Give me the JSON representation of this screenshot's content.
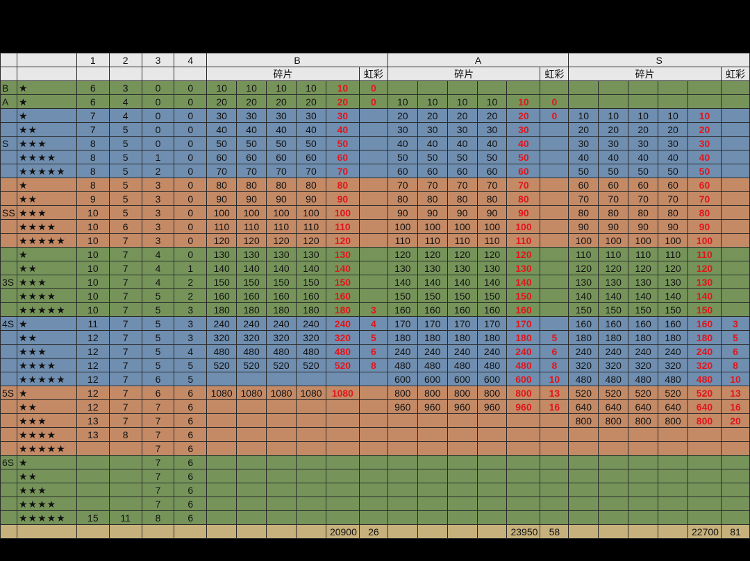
{
  "header": {
    "top": [
      "",
      "",
      "1",
      "2",
      "3",
      "4",
      "B",
      "A",
      "S"
    ],
    "shard": "碎片",
    "rainbow": "虹彩"
  },
  "rows": [
    {
      "band": "green",
      "grade": "B",
      "stars": "★",
      "c": [
        "6",
        "3",
        "0",
        "0"
      ],
      "B": [
        "10",
        "10",
        "10",
        "10",
        "10"
      ],
      "Br": "0",
      "A": [
        "",
        "",
        "",
        "",
        ""
      ],
      "Ar": "",
      "S": [
        "",
        "",
        "",
        "",
        ""
      ],
      "Sr": ""
    },
    {
      "band": "green",
      "grade": "A",
      "stars": "★",
      "c": [
        "6",
        "4",
        "0",
        "0"
      ],
      "B": [
        "20",
        "20",
        "20",
        "20",
        "20"
      ],
      "Br": "0",
      "A": [
        "10",
        "10",
        "10",
        "10",
        "10"
      ],
      "Ar": "0",
      "S": [
        "",
        "",
        "",
        "",
        ""
      ],
      "Sr": ""
    },
    {
      "band": "blue",
      "grade": "",
      "stars": "★",
      "c": [
        "7",
        "4",
        "0",
        "0"
      ],
      "B": [
        "30",
        "30",
        "30",
        "30",
        "30"
      ],
      "Br": "",
      "A": [
        "20",
        "20",
        "20",
        "20",
        "20"
      ],
      "Ar": "0",
      "S": [
        "10",
        "10",
        "10",
        "10",
        "10"
      ],
      "Sr": ""
    },
    {
      "band": "blue",
      "grade": "",
      "stars": "★★",
      "c": [
        "7",
        "5",
        "0",
        "0"
      ],
      "B": [
        "40",
        "40",
        "40",
        "40",
        "40"
      ],
      "Br": "",
      "A": [
        "30",
        "30",
        "30",
        "30",
        "30"
      ],
      "Ar": "",
      "S": [
        "20",
        "20",
        "20",
        "20",
        "20"
      ],
      "Sr": ""
    },
    {
      "band": "blue",
      "grade": "S",
      "stars": "★★★",
      "c": [
        "8",
        "5",
        "0",
        "0"
      ],
      "B": [
        "50",
        "50",
        "50",
        "50",
        "50"
      ],
      "Br": "",
      "A": [
        "40",
        "40",
        "40",
        "40",
        "40"
      ],
      "Ar": "",
      "S": [
        "30",
        "30",
        "30",
        "30",
        "30"
      ],
      "Sr": ""
    },
    {
      "band": "blue",
      "grade": "",
      "stars": "★★★★",
      "c": [
        "8",
        "5",
        "1",
        "0"
      ],
      "B": [
        "60",
        "60",
        "60",
        "60",
        "60"
      ],
      "Br": "",
      "A": [
        "50",
        "50",
        "50",
        "50",
        "50"
      ],
      "Ar": "",
      "S": [
        "40",
        "40",
        "40",
        "40",
        "40"
      ],
      "Sr": ""
    },
    {
      "band": "blue",
      "grade": "",
      "stars": "★★★★★",
      "c": [
        "8",
        "5",
        "2",
        "0"
      ],
      "B": [
        "70",
        "70",
        "70",
        "70",
        "70"
      ],
      "Br": "",
      "A": [
        "60",
        "60",
        "60",
        "60",
        "60"
      ],
      "Ar": "",
      "S": [
        "50",
        "50",
        "50",
        "50",
        "50"
      ],
      "Sr": ""
    },
    {
      "band": "orange",
      "grade": "",
      "stars": "★",
      "c": [
        "8",
        "5",
        "3",
        "0"
      ],
      "B": [
        "80",
        "80",
        "80",
        "80",
        "80"
      ],
      "Br": "",
      "A": [
        "70",
        "70",
        "70",
        "70",
        "70"
      ],
      "Ar": "",
      "S": [
        "60",
        "60",
        "60",
        "60",
        "60"
      ],
      "Sr": ""
    },
    {
      "band": "orange",
      "grade": "",
      "stars": "★★",
      "c": [
        "9",
        "5",
        "3",
        "0"
      ],
      "B": [
        "90",
        "90",
        "90",
        "90",
        "90"
      ],
      "Br": "",
      "A": [
        "80",
        "80",
        "80",
        "80",
        "80"
      ],
      "Ar": "",
      "S": [
        "70",
        "70",
        "70",
        "70",
        "70"
      ],
      "Sr": ""
    },
    {
      "band": "orange",
      "grade": "SS",
      "stars": "★★★",
      "c": [
        "10",
        "5",
        "3",
        "0"
      ],
      "B": [
        "100",
        "100",
        "100",
        "100",
        "100"
      ],
      "Br": "",
      "A": [
        "90",
        "90",
        "90",
        "90",
        "90"
      ],
      "Ar": "",
      "S": [
        "80",
        "80",
        "80",
        "80",
        "80"
      ],
      "Sr": ""
    },
    {
      "band": "orange",
      "grade": "",
      "stars": "★★★★",
      "c": [
        "10",
        "6",
        "3",
        "0"
      ],
      "B": [
        "110",
        "110",
        "110",
        "110",
        "110"
      ],
      "Br": "",
      "A": [
        "100",
        "100",
        "100",
        "100",
        "100"
      ],
      "Ar": "",
      "S": [
        "90",
        "90",
        "90",
        "90",
        "90"
      ],
      "Sr": ""
    },
    {
      "band": "orange",
      "grade": "",
      "stars": "★★★★★",
      "c": [
        "10",
        "7",
        "3",
        "0"
      ],
      "B": [
        "120",
        "120",
        "120",
        "120",
        "120"
      ],
      "Br": "",
      "A": [
        "110",
        "110",
        "110",
        "110",
        "110"
      ],
      "Ar": "",
      "S": [
        "100",
        "100",
        "100",
        "100",
        "100"
      ],
      "Sr": ""
    },
    {
      "band": "green",
      "grade": "",
      "stars": "★",
      "c": [
        "10",
        "7",
        "4",
        "0"
      ],
      "B": [
        "130",
        "130",
        "130",
        "130",
        "130"
      ],
      "Br": "",
      "A": [
        "120",
        "120",
        "120",
        "120",
        "120"
      ],
      "Ar": "",
      "S": [
        "110",
        "110",
        "110",
        "110",
        "110"
      ],
      "Sr": ""
    },
    {
      "band": "green",
      "grade": "",
      "stars": "★★",
      "c": [
        "10",
        "7",
        "4",
        "1"
      ],
      "B": [
        "140",
        "140",
        "140",
        "140",
        "140"
      ],
      "Br": "",
      "A": [
        "130",
        "130",
        "130",
        "130",
        "130"
      ],
      "Ar": "",
      "S": [
        "120",
        "120",
        "120",
        "120",
        "120"
      ],
      "Sr": ""
    },
    {
      "band": "green",
      "grade": "3S",
      "stars": "★★★",
      "c": [
        "10",
        "7",
        "4",
        "2"
      ],
      "B": [
        "150",
        "150",
        "150",
        "150",
        "150"
      ],
      "Br": "",
      "A": [
        "140",
        "140",
        "140",
        "140",
        "140"
      ],
      "Ar": "",
      "S": [
        "130",
        "130",
        "130",
        "130",
        "130"
      ],
      "Sr": ""
    },
    {
      "band": "green",
      "grade": "",
      "stars": "★★★★",
      "c": [
        "10",
        "7",
        "5",
        "2"
      ],
      "B": [
        "160",
        "160",
        "160",
        "160",
        "160"
      ],
      "Br": "",
      "A": [
        "150",
        "150",
        "150",
        "150",
        "150"
      ],
      "Ar": "",
      "S": [
        "140",
        "140",
        "140",
        "140",
        "140"
      ],
      "Sr": ""
    },
    {
      "band": "green",
      "grade": "",
      "stars": "★★★★★",
      "c": [
        "10",
        "7",
        "5",
        "3"
      ],
      "B": [
        "180",
        "180",
        "180",
        "180",
        "180"
      ],
      "Br": "3",
      "A": [
        "160",
        "160",
        "160",
        "160",
        "160"
      ],
      "Ar": "",
      "S": [
        "150",
        "150",
        "150",
        "150",
        "150"
      ],
      "Sr": ""
    },
    {
      "band": "blue",
      "grade": "4S",
      "stars": "★",
      "c": [
        "11",
        "7",
        "5",
        "3"
      ],
      "B": [
        "240",
        "240",
        "240",
        "240",
        "240"
      ],
      "Br": "4",
      "A": [
        "170",
        "170",
        "170",
        "170",
        "170"
      ],
      "Ar": "",
      "S": [
        "160",
        "160",
        "160",
        "160",
        "160"
      ],
      "Sr": "3"
    },
    {
      "band": "blue",
      "grade": "",
      "stars": "★★",
      "c": [
        "12",
        "7",
        "5",
        "3"
      ],
      "B": [
        "320",
        "320",
        "320",
        "320",
        "320"
      ],
      "Br": "5",
      "A": [
        "180",
        "180",
        "180",
        "180",
        "180"
      ],
      "Ar": "5",
      "S": [
        "180",
        "180",
        "180",
        "180",
        "180"
      ],
      "Sr": "5"
    },
    {
      "band": "blue",
      "grade": "",
      "stars": "★★★",
      "c": [
        "12",
        "7",
        "5",
        "4"
      ],
      "B": [
        "480",
        "480",
        "480",
        "480",
        "480"
      ],
      "Br": "6",
      "A": [
        "240",
        "240",
        "240",
        "240",
        "240"
      ],
      "Ar": "6",
      "S": [
        "240",
        "240",
        "240",
        "240",
        "240"
      ],
      "Sr": "6"
    },
    {
      "band": "blue",
      "grade": "",
      "stars": "★★★★",
      "c": [
        "12",
        "7",
        "5",
        "5"
      ],
      "B": [
        "520",
        "520",
        "520",
        "520",
        "520"
      ],
      "Br": "8",
      "A": [
        "480",
        "480",
        "480",
        "480",
        "480"
      ],
      "Ar": "8",
      "S": [
        "320",
        "320",
        "320",
        "320",
        "320"
      ],
      "Sr": "8"
    },
    {
      "band": "blue",
      "grade": "",
      "stars": "★★★★★",
      "c": [
        "12",
        "7",
        "6",
        "5"
      ],
      "B": [
        "",
        "",
        "",
        "",
        ""
      ],
      "Br": "",
      "A": [
        "600",
        "600",
        "600",
        "600",
        "600"
      ],
      "Ar": "10",
      "S": [
        "480",
        "480",
        "480",
        "480",
        "480"
      ],
      "Sr": "10"
    },
    {
      "band": "orange",
      "grade": "5S",
      "stars": "★",
      "c": [
        "12",
        "7",
        "6",
        "6"
      ],
      "B": [
        "1080",
        "1080",
        "1080",
        "1080",
        "1080"
      ],
      "Br": "",
      "A": [
        "800",
        "800",
        "800",
        "800",
        "800"
      ],
      "Ar": "13",
      "S": [
        "520",
        "520",
        "520",
        "520",
        "520"
      ],
      "Sr": "13"
    },
    {
      "band": "orange",
      "grade": "",
      "stars": "★★",
      "c": [
        "12",
        "7",
        "7",
        "6"
      ],
      "B": [
        "",
        "",
        "",
        "",
        ""
      ],
      "Br": "",
      "A": [
        "960",
        "960",
        "960",
        "960",
        "960"
      ],
      "Ar": "16",
      "S": [
        "640",
        "640",
        "640",
        "640",
        "640"
      ],
      "Sr": "16"
    },
    {
      "band": "orange",
      "grade": "",
      "stars": "★★★",
      "c": [
        "13",
        "7",
        "7",
        "6"
      ],
      "B": [
        "",
        "",
        "",
        "",
        ""
      ],
      "Br": "",
      "A": [
        "",
        "",
        "",
        "",
        ""
      ],
      "Ar": "",
      "S": [
        "800",
        "800",
        "800",
        "800",
        "800"
      ],
      "Sr": "20"
    },
    {
      "band": "orange",
      "grade": "",
      "stars": "★★★★",
      "c": [
        "13",
        "8",
        "7",
        "6"
      ],
      "B": [
        "",
        "",
        "",
        "",
        ""
      ],
      "Br": "",
      "A": [
        "",
        "",
        "",
        "",
        ""
      ],
      "Ar": "",
      "S": [
        "",
        "",
        "",
        "",
        ""
      ],
      "Sr": ""
    },
    {
      "band": "orange",
      "grade": "",
      "stars": "★★★★★",
      "c": [
        "",
        "",
        "7",
        "6"
      ],
      "B": [
        "",
        "",
        "",
        "",
        ""
      ],
      "Br": "",
      "A": [
        "",
        "",
        "",
        "",
        ""
      ],
      "Ar": "",
      "S": [
        "",
        "",
        "",
        "",
        ""
      ],
      "Sr": ""
    },
    {
      "band": "green",
      "grade": "6S",
      "stars": "★",
      "c": [
        "",
        "",
        "7",
        "6"
      ],
      "B": [
        "",
        "",
        "",
        "",
        ""
      ],
      "Br": "",
      "A": [
        "",
        "",
        "",
        "",
        ""
      ],
      "Ar": "",
      "S": [
        "",
        "",
        "",
        "",
        ""
      ],
      "Sr": ""
    },
    {
      "band": "green",
      "grade": "",
      "stars": "★★",
      "c": [
        "",
        "",
        "7",
        "6"
      ],
      "B": [
        "",
        "",
        "",
        "",
        ""
      ],
      "Br": "",
      "A": [
        "",
        "",
        "",
        "",
        ""
      ],
      "Ar": "",
      "S": [
        "",
        "",
        "",
        "",
        ""
      ],
      "Sr": ""
    },
    {
      "band": "green",
      "grade": "",
      "stars": "★★★",
      "c": [
        "",
        "",
        "7",
        "6"
      ],
      "B": [
        "",
        "",
        "",
        "",
        ""
      ],
      "Br": "",
      "A": [
        "",
        "",
        "",
        "",
        ""
      ],
      "Ar": "",
      "S": [
        "",
        "",
        "",
        "",
        ""
      ],
      "Sr": ""
    },
    {
      "band": "green",
      "grade": "",
      "stars": "★★★★",
      "c": [
        "",
        "",
        "7",
        "6"
      ],
      "B": [
        "",
        "",
        "",
        "",
        ""
      ],
      "Br": "",
      "A": [
        "",
        "",
        "",
        "",
        ""
      ],
      "Ar": "",
      "S": [
        "",
        "",
        "",
        "",
        ""
      ],
      "Sr": ""
    },
    {
      "band": "green",
      "grade": "",
      "stars": "★★★★★",
      "c": [
        "15",
        "11",
        "8",
        "6"
      ],
      "B": [
        "",
        "",
        "",
        "",
        ""
      ],
      "Br": "",
      "A": [
        "",
        "",
        "",
        "",
        ""
      ],
      "Ar": "",
      "S": [
        "",
        "",
        "",
        "",
        ""
      ],
      "Sr": ""
    }
  ],
  "totals": {
    "B": "20900",
    "Br": "26",
    "A": "23950",
    "Ar": "58",
    "S": "22700",
    "Sr": "81"
  },
  "colors": {
    "green": "#76945a",
    "blue": "#6f8eb0",
    "orange": "#c48a66",
    "gold": "#c6b07b",
    "red": "#e0161b"
  }
}
